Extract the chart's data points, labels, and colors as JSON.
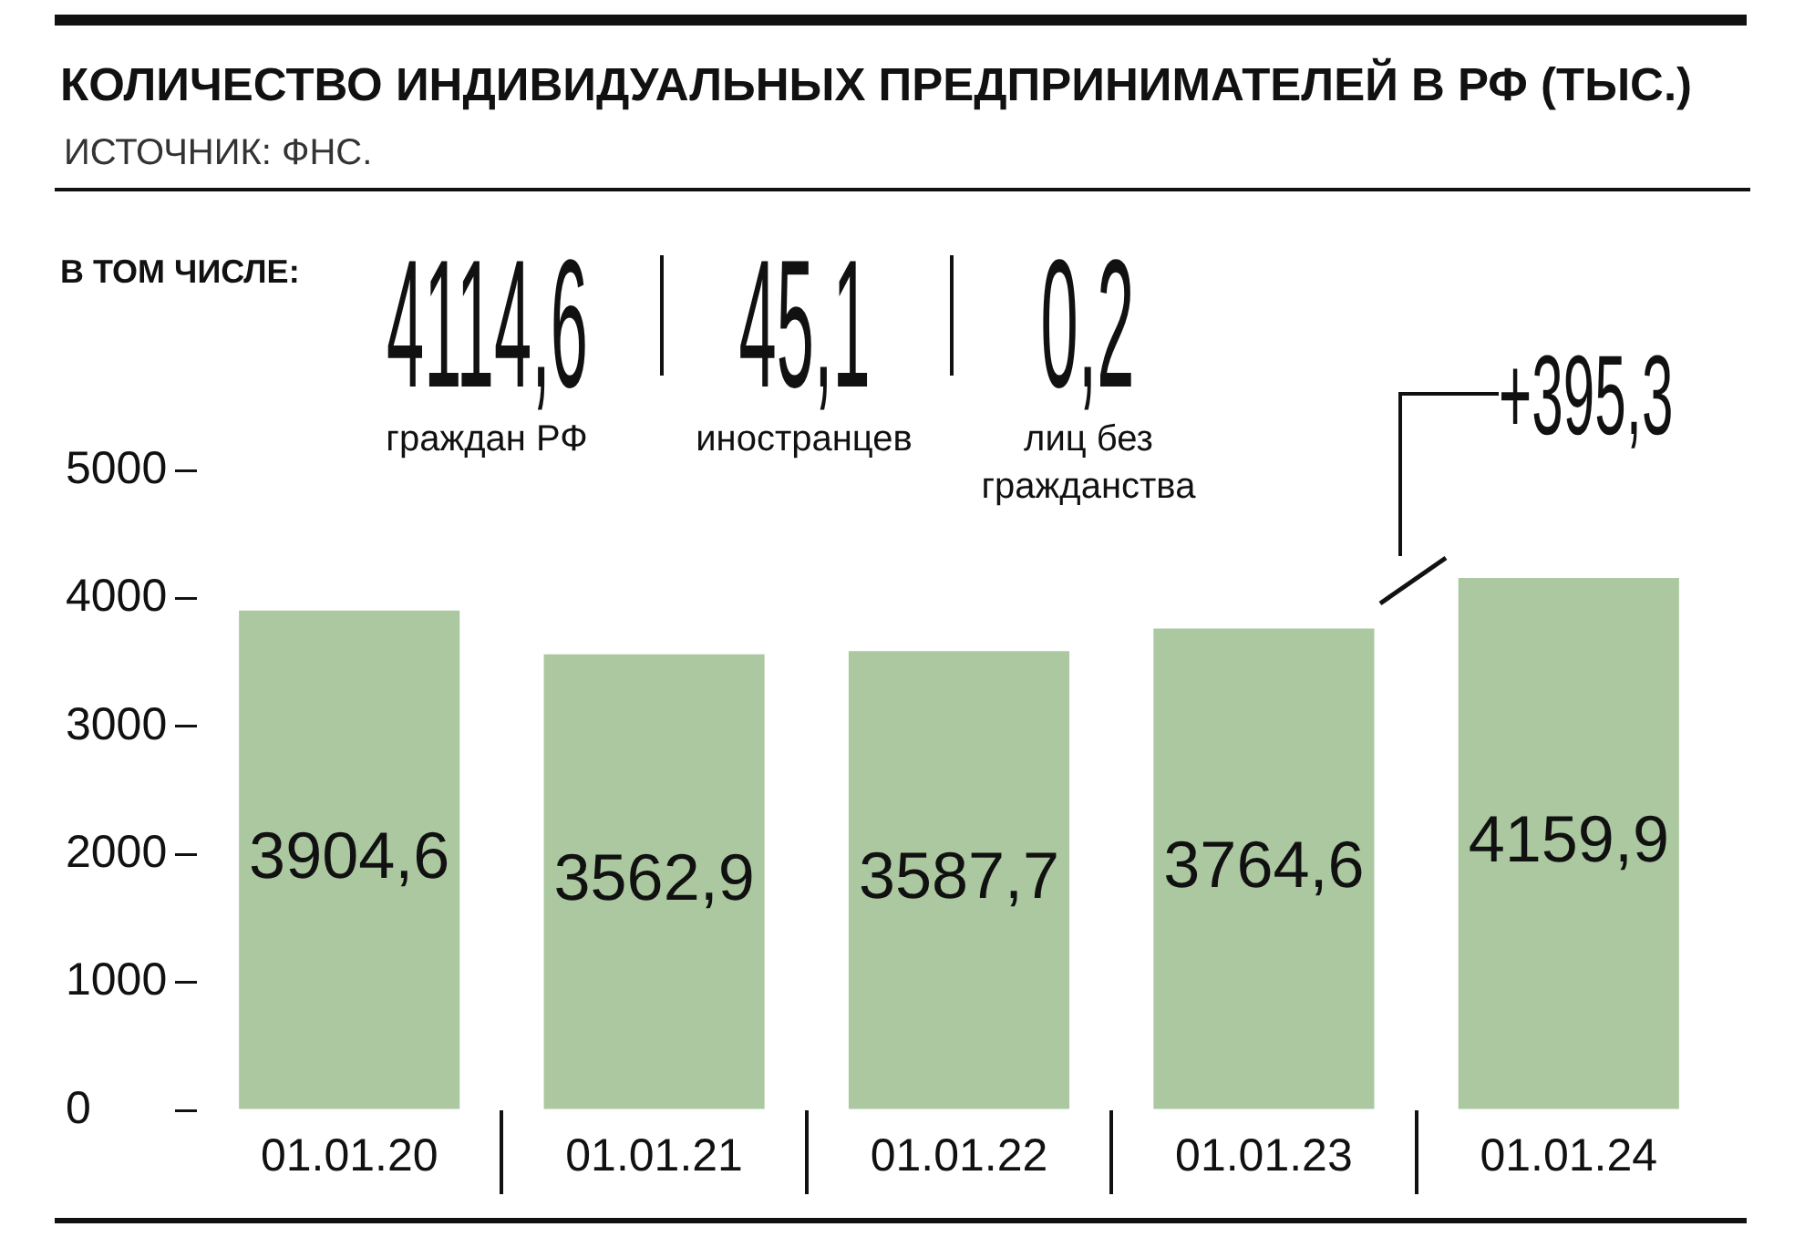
{
  "chart_data": {
    "type": "bar",
    "title": "КОЛИЧЕСТВО ИНДИВИДУАЛЬНЫХ ПРЕДПРИНИМАТЕЛЕЙ В РФ (ТЫС.)",
    "categories": [
      "01.01.20",
      "01.01.21",
      "01.01.22",
      "01.01.23",
      "01.01.24"
    ],
    "values": [
      3904.6,
      3562.9,
      3587.7,
      3764.6,
      4159.9
    ],
    "value_labels": [
      "3904,6",
      "3562,9",
      "3587,7",
      "3764,6",
      "4159,9"
    ],
    "color": "#abc8a0",
    "ylim": [
      0,
      5000
    ],
    "yticks": [
      0,
      1000,
      2000,
      3000,
      4000,
      5000
    ],
    "annotations": [
      "ИСТОЧНИК: ФНС.",
      "В ТОМ ЧИСЛЕ:",
      "4114,6",
      "граждан РФ",
      "45,1",
      "иностранцев",
      "0,2",
      "лиц без гражданства",
      "+395,3"
    ]
  }
}
